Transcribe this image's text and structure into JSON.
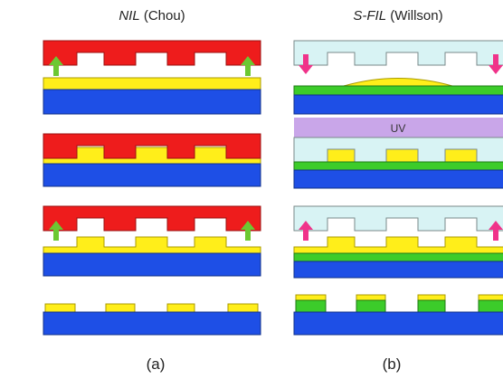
{
  "columns": [
    {
      "method": "NIL",
      "author": "(Chou)",
      "label": "(a)"
    },
    {
      "method": "S-FIL",
      "author": "(Willson)",
      "label": "(b)"
    }
  ],
  "uv_label": "UV"
}
